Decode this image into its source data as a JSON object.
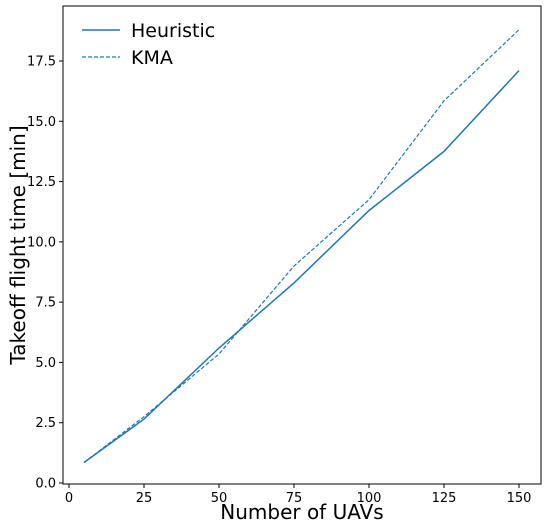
{
  "chart_data": {
    "type": "line",
    "xlabel": "Number of UAVs",
    "ylabel": "Takeoff flight time [min]",
    "x": [
      5,
      25,
      50,
      75,
      100,
      125,
      150
    ],
    "series": [
      {
        "name": "Heuristic",
        "values": [
          0.85,
          2.65,
          5.6,
          8.3,
          11.3,
          13.75,
          17.1
        ],
        "style": "solid",
        "color": "#1f77b4"
      },
      {
        "name": "KMA",
        "values": [
          0.85,
          2.75,
          5.35,
          9.0,
          11.75,
          15.85,
          18.8
        ],
        "style": "dashed",
        "color": "#1f77b4"
      }
    ],
    "xlim": [
      0,
      150
    ],
    "ylim": [
      0,
      18.8
    ],
    "xticks": [
      "0",
      "25",
      "50",
      "75",
      "100",
      "125",
      "150"
    ],
    "yticks": [
      "0.0",
      "2.5",
      "5.0",
      "7.5",
      "10.0",
      "12.5",
      "15.0",
      "17.5"
    ],
    "legend": "top-left",
    "grid": false
  }
}
